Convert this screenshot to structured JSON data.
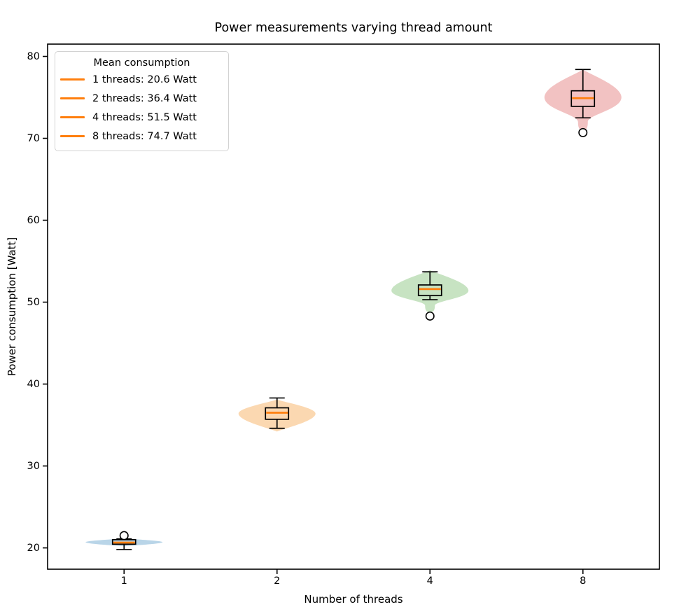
{
  "figure": {
    "title": "Power measurements varying thread amount",
    "xlabel": "Number of threads",
    "ylabel": "Power consumption [Watt]"
  },
  "legend": {
    "title": "Mean consumption",
    "position": "upper left",
    "line_color": "#ff7f0e",
    "items": [
      {
        "label": "1 threads: 20.6 Watt"
      },
      {
        "label": "2 threads: 36.4 Watt"
      },
      {
        "label": "4 threads: 51.5 Watt"
      },
      {
        "label": "8 threads: 74.7 Watt"
      }
    ]
  },
  "chart_data": {
    "type": "violin+box",
    "title": "Power measurements varying thread amount",
    "xlabel": "Number of threads",
    "ylabel": "Power consumption [Watt]",
    "categories": [
      "1",
      "2",
      "4",
      "8"
    ],
    "x_positions": [
      1,
      2,
      3,
      4
    ],
    "xlim": [
      0.5,
      4.5
    ],
    "ylim": [
      17.4,
      81.5
    ],
    "yticks": [
      20,
      30,
      40,
      50,
      60,
      70,
      80
    ],
    "grid": false,
    "median_color": "#ff7f0e",
    "box_color": "#000000",
    "outlier_fill": "#ffffff",
    "groups": [
      {
        "threads": "1",
        "mean_watt": 20.6,
        "median": 20.65,
        "q1": 20.45,
        "q3": 21.0,
        "whisker_low": 19.8,
        "whisker_high": 21.1,
        "outliers": [
          21.5
        ],
        "violin": {
          "top": 21.15,
          "mode": 20.7,
          "bottom": 20.2,
          "fill": "#b9d5e8"
        }
      },
      {
        "threads": "2",
        "mean_watt": 36.4,
        "median": 36.5,
        "q1": 35.7,
        "q3": 37.1,
        "whisker_low": 34.6,
        "whisker_high": 38.3,
        "outliers": [],
        "violin": {
          "top": 38.1,
          "mode": 36.4,
          "bottom": 34.2,
          "fill": "#fbd8b1"
        }
      },
      {
        "threads": "4",
        "mean_watt": 51.5,
        "median": 51.6,
        "q1": 50.8,
        "q3": 52.1,
        "whisker_low": 50.3,
        "whisker_high": 53.7,
        "outliers": [
          48.3
        ],
        "violin": {
          "top": 53.9,
          "mode": 51.4,
          "bottom": 49.6,
          "tail_end": 48.7,
          "fill": "#c7e3c2"
        }
      },
      {
        "threads": "8",
        "mean_watt": 74.7,
        "median": 74.9,
        "q1": 73.9,
        "q3": 75.8,
        "whisker_low": 72.5,
        "whisker_high": 78.4,
        "outliers": [
          70.7
        ],
        "violin": {
          "top": 78.4,
          "mode": 75.0,
          "bottom": 72.0,
          "tail_end": 70.9,
          "fill": "#f2c2c2"
        }
      }
    ]
  }
}
